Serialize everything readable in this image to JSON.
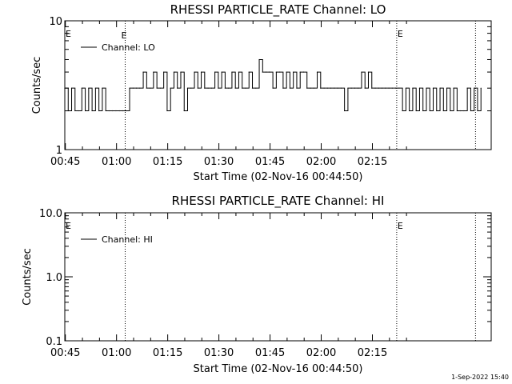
{
  "footer_timestamp": "1-Sep-2022 15:40",
  "chart_data": [
    {
      "type": "line",
      "title": "RHESSI PARTICLE_RATE Channel: LO",
      "xlabel": "Start Time (02-Nov-16 00:44:50)",
      "ylabel": "Counts/sec",
      "x_unit": "minutes after 00:44:50 (UT)",
      "xlim": [
        0,
        125
      ],
      "ylim": [
        1,
        10
      ],
      "yscale": "log",
      "x_tick_labels": [
        "00:45",
        "01:00",
        "01:15",
        "01:30",
        "01:45",
        "02:00",
        "02:15"
      ],
      "x_ticks": [
        0.17,
        15.17,
        30.17,
        45.17,
        60.17,
        75.17,
        90.17
      ],
      "y_tick_labels": [
        "1",
        "10"
      ],
      "y_ticks": [
        1,
        10
      ],
      "legend": {
        "position": "top-left",
        "entries": [
          "Channel: LO"
        ]
      },
      "markers": [
        {
          "x": 17.7,
          "label": "E"
        },
        {
          "x": 97.3,
          "label": ""
        },
        {
          "x": 120.4,
          "label": ""
        }
      ],
      "corner_labels": [
        {
          "x": 0,
          "label": "E"
        },
        {
          "x": 97.3,
          "label": "E"
        }
      ],
      "series": [
        {
          "name": "Channel: LO",
          "x": [
            0,
            1,
            2,
            3,
            4,
            5,
            6,
            7,
            8,
            9,
            10,
            11,
            12,
            13,
            14,
            15,
            16,
            17,
            18,
            19,
            20,
            21,
            22,
            23,
            24,
            25,
            26,
            27,
            28,
            29,
            30,
            31,
            32,
            33,
            34,
            35,
            36,
            37,
            38,
            39,
            40,
            41,
            42,
            43,
            44,
            45,
            46,
            47,
            48,
            49,
            50,
            51,
            52,
            53,
            54,
            55,
            56,
            57,
            58,
            59,
            60,
            61,
            62,
            63,
            64,
            65,
            66,
            67,
            68,
            69,
            70,
            71,
            72,
            73,
            74,
            75,
            76,
            77,
            78,
            79,
            80,
            81,
            82,
            83,
            84,
            85,
            86,
            87,
            88,
            89,
            90,
            91,
            92,
            93,
            94,
            95,
            96,
            97,
            98,
            99,
            100,
            101,
            102,
            103,
            104,
            105,
            106,
            107,
            108,
            109,
            110,
            111,
            112,
            113,
            114,
            115,
            116,
            117,
            118,
            119,
            120,
            121,
            122
          ],
          "y": [
            3,
            2,
            3,
            2,
            2,
            3,
            2,
            3,
            2,
            3,
            2,
            3,
            2,
            2,
            2,
            2,
            2,
            2,
            2,
            3,
            3,
            3,
            3,
            4,
            3,
            3,
            4,
            3,
            3,
            4,
            2,
            3,
            4,
            3,
            4,
            2,
            3,
            3,
            4,
            3,
            4,
            3,
            3,
            3,
            4,
            3,
            4,
            3,
            3,
            4,
            3,
            4,
            3,
            3,
            4,
            3,
            3,
            5,
            4,
            4,
            4,
            3,
            4,
            4,
            3,
            4,
            3,
            4,
            3,
            4,
            4,
            3,
            3,
            3,
            4,
            3,
            3,
            3,
            3,
            3,
            3,
            3,
            2,
            3,
            3,
            3,
            3,
            4,
            3,
            4,
            3,
            3,
            3,
            3,
            3,
            3,
            3,
            3,
            3,
            2,
            3,
            2,
            3,
            2,
            3,
            2,
            3,
            2,
            3,
            2,
            3,
            2,
            3,
            2,
            3,
            2,
            2,
            2,
            3,
            2,
            3,
            2,
            3
          ]
        }
      ]
    },
    {
      "type": "line",
      "title": "RHESSI PARTICLE_RATE Channel: HI",
      "xlabel": "Start Time (02-Nov-16 00:44:50)",
      "ylabel": "Counts/sec",
      "x_unit": "minutes after 00:44:50 (UT)",
      "xlim": [
        0,
        125
      ],
      "ylim": [
        0.1,
        10
      ],
      "yscale": "log",
      "x_tick_labels": [
        "00:45",
        "01:00",
        "01:15",
        "01:30",
        "01:45",
        "02:00",
        "02:15"
      ],
      "x_ticks": [
        0.17,
        15.17,
        30.17,
        45.17,
        60.17,
        75.17,
        90.17
      ],
      "y_tick_labels": [
        "0.1",
        "1.0",
        "10.0"
      ],
      "y_ticks": [
        0.1,
        1,
        10
      ],
      "legend": {
        "position": "top-left",
        "entries": [
          "Channel: HI"
        ]
      },
      "markers": [
        {
          "x": 17.7,
          "label": ""
        },
        {
          "x": 97.3,
          "label": ""
        },
        {
          "x": 120.4,
          "label": ""
        }
      ],
      "corner_labels": [
        {
          "x": 0,
          "label": "E"
        },
        {
          "x": 97.3,
          "label": "E"
        }
      ],
      "series": [
        {
          "name": "Channel: HI",
          "x": [],
          "y": []
        }
      ]
    }
  ]
}
